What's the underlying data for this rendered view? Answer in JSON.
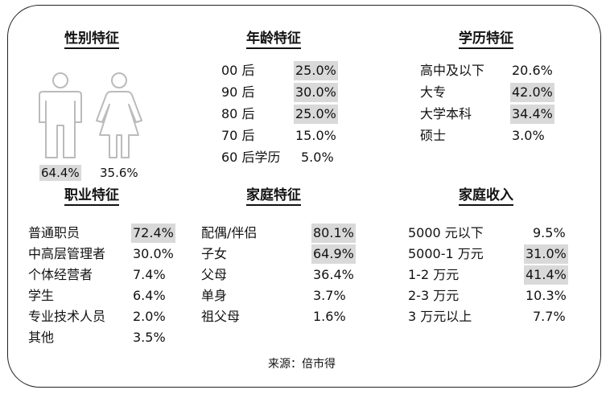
{
  "gender": {
    "title": "性别特征",
    "male_pct": "64.4%",
    "female_pct": "35.6%",
    "icons": [
      "male-figure-icon",
      "female-figure-icon"
    ]
  },
  "age": {
    "title": "年龄特征",
    "rows": [
      {
        "label": "00 后",
        "value": "25.0%",
        "highlight": true
      },
      {
        "label": "90 后",
        "value": "30.0%",
        "highlight": true
      },
      {
        "label": "80 后",
        "value": "25.0%",
        "highlight": true
      },
      {
        "label": "70 后",
        "value": "15.0%",
        "highlight": false
      },
      {
        "label": "60 后学历",
        "value": "5.0%",
        "highlight": false
      }
    ]
  },
  "education": {
    "title": "学历特征",
    "rows": [
      {
        "label": "高中及以下",
        "value": "20.6%",
        "highlight": false
      },
      {
        "label": "大专",
        "value": "42.0%",
        "highlight": true
      },
      {
        "label": "大学本科",
        "value": "34.4%",
        "highlight": true
      },
      {
        "label": "硕士",
        "value": "3.0%",
        "highlight": false
      }
    ]
  },
  "occupation": {
    "title": "职业特征",
    "rows": [
      {
        "label": "普通职员",
        "value": "72.4%",
        "highlight": true
      },
      {
        "label": "中高层管理者",
        "value": "30.0%",
        "highlight": false
      },
      {
        "label": "个体经营者",
        "value": "7.4%",
        "highlight": false
      },
      {
        "label": "学生",
        "value": "6.4%",
        "highlight": false
      },
      {
        "label": "专业技术人员",
        "value": "2.0%",
        "highlight": false
      },
      {
        "label": "其他",
        "value": "3.5%",
        "highlight": false
      }
    ]
  },
  "family": {
    "title": "家庭特征",
    "rows": [
      {
        "label": "配偶/伴侣",
        "value": "80.1%",
        "highlight": true
      },
      {
        "label": "子女",
        "value": "64.9%",
        "highlight": true
      },
      {
        "label": "父母",
        "value": "36.4%",
        "highlight": false
      },
      {
        "label": "单身",
        "value": "3.7%",
        "highlight": false
      },
      {
        "label": "祖父母",
        "value": "1.6%",
        "highlight": false
      }
    ]
  },
  "income": {
    "title": "家庭收入",
    "rows": [
      {
        "label": "5000 元以下",
        "value": "9.5%",
        "highlight": false
      },
      {
        "label": "5000-1 万元",
        "value": "31.0%",
        "highlight": true
      },
      {
        "label": "1-2 万元",
        "value": "41.4%",
        "highlight": true
      },
      {
        "label": "2-3 万元",
        "value": "10.3%",
        "highlight": false
      },
      {
        "label": "3 万元以上",
        "value": "7.7%",
        "highlight": false
      }
    ]
  },
  "source": "来源：倍市得",
  "colors": {
    "highlight": "#d9d9d9",
    "border": "#222222",
    "text": "#111111"
  }
}
